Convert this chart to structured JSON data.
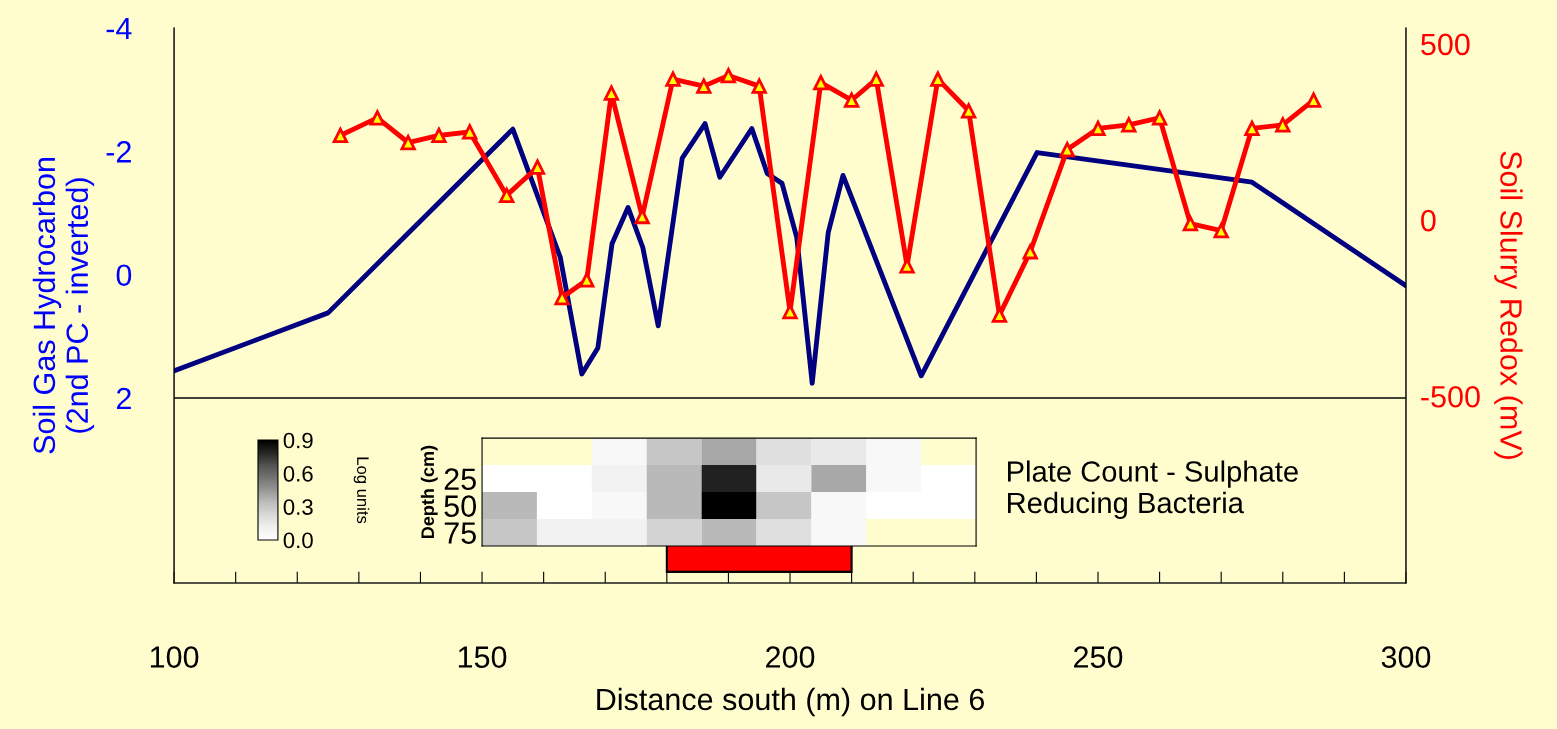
{
  "chart_data": [
    {
      "type": "line",
      "xlabel": "Distance south (m) on Line 6",
      "ylabel": "Soil Gas Hydrocarbon\n(2nd PC - inverted)",
      "y2label": "Soil Slurry Redox (mV)",
      "xlim": [
        100,
        300
      ],
      "xticks": [
        100,
        {
          "value": 110,
          "label": null
        },
        {
          "value": 120,
          "label": null
        },
        {
          "value": 130,
          "label": null
        },
        {
          "value": 140,
          "label": null
        },
        150,
        {
          "value": 160,
          "label": null
        },
        {
          "value": 170,
          "label": null
        },
        {
          "value": 180,
          "label": null
        },
        {
          "value": 190,
          "label": null
        },
        200,
        {
          "value": 210,
          "label": null
        },
        {
          "value": 220,
          "label": null
        },
        {
          "value": 230,
          "label": null
        },
        {
          "value": 240,
          "label": null
        },
        250,
        {
          "value": 260,
          "label": null
        },
        {
          "value": 270,
          "label": null
        },
        {
          "value": 280,
          "label": null
        },
        {
          "value": 290,
          "label": null
        },
        300
      ],
      "ylim": [
        5.0,
        -4
      ],
      "yticks": [
        -4,
        -2,
        0,
        2
      ],
      "y2lim": [
        -1030,
        545
      ],
      "y2ticks": [
        -500,
        0,
        500
      ],
      "grid": false,
      "legend": false,
      "line_style": "solid",
      "ref_lines": [
        {
          "axis": "y",
          "value": 2,
          "color": "#000000"
        }
      ],
      "annotations": [
        "Plate Count - Sulphate\nReducing Bacteria"
      ],
      "bands": [
        {
          "axis": "x",
          "from": 180,
          "to": 210,
          "color": "#ff0000"
        }
      ],
      "series": [
        {
          "color": "#000080",
          "marker": "none",
          "x": [
            100,
            125,
            155,
            162.7,
            166.2,
            168.8,
            171.1,
            173.7,
            176.1,
            178.6,
            182.5,
            186.2,
            188.6,
            193.8,
            196.3,
            198.7,
            201.1,
            203.6,
            206.2,
            208.6,
            221.3,
            240.1,
            275,
            300
          ],
          "values": [
            1.56,
            0.62,
            -2.36,
            -0.28,
            1.61,
            1.19,
            -0.5,
            -1.09,
            -0.44,
            0.83,
            -1.89,
            -2.45,
            -1.58,
            -2.37,
            -1.64,
            -1.48,
            -0.6,
            1.76,
            -0.68,
            -1.61,
            1.64,
            -1.98,
            -1.5,
            0.18
          ]
        },
        {
          "color": "#ff0000",
          "marker": "triangle",
          "axis": "y2",
          "x": [
            127,
            133,
            138,
            143,
            148,
            154,
            159,
            163,
            167,
            171,
            176,
            181,
            186,
            190,
            195,
            200,
            205,
            210,
            214,
            219,
            224,
            229,
            234,
            239,
            245,
            250,
            255,
            260,
            265,
            270,
            275,
            280,
            285
          ],
          "values": [
            240,
            290,
            220,
            240,
            250,
            70,
            150,
            -220,
            -170,
            360,
            10,
            400,
            380,
            410,
            380,
            -260,
            390,
            340,
            400,
            -130,
            400,
            310,
            -270,
            -90,
            200,
            260,
            270,
            290,
            -10,
            -30,
            260,
            270,
            340
          ]
        }
      ]
    },
    {
      "type": "heatmap",
      "ylabel": "Depth (cm)",
      "clabel": "Log units",
      "categories": [
        null,
        null,
        null,
        null,
        null,
        null,
        null,
        null,
        null
      ],
      "y_categories": [
        null,
        "25",
        "50",
        "75"
      ],
      "cells": [
        [
          null,
          null,
          0.05,
          0.3,
          0.4,
          0.2,
          0.15,
          0.05,
          null
        ],
        [
          0.0,
          0.0,
          0.1,
          0.35,
          0.8,
          0.15,
          0.4,
          0.05,
          0.0
        ],
        [
          0.35,
          0.0,
          0.05,
          0.35,
          0.9,
          0.3,
          0.05,
          0.0,
          0.0
        ],
        [
          0.3,
          0.1,
          0.1,
          0.25,
          0.35,
          0.2,
          0.05,
          null,
          null
        ]
      ],
      "clim": [
        0,
        0.9
      ],
      "cticks": [
        {
          "value": 0,
          "label": "0.0"
        },
        0.3,
        0.6,
        0.9
      ]
    }
  ]
}
